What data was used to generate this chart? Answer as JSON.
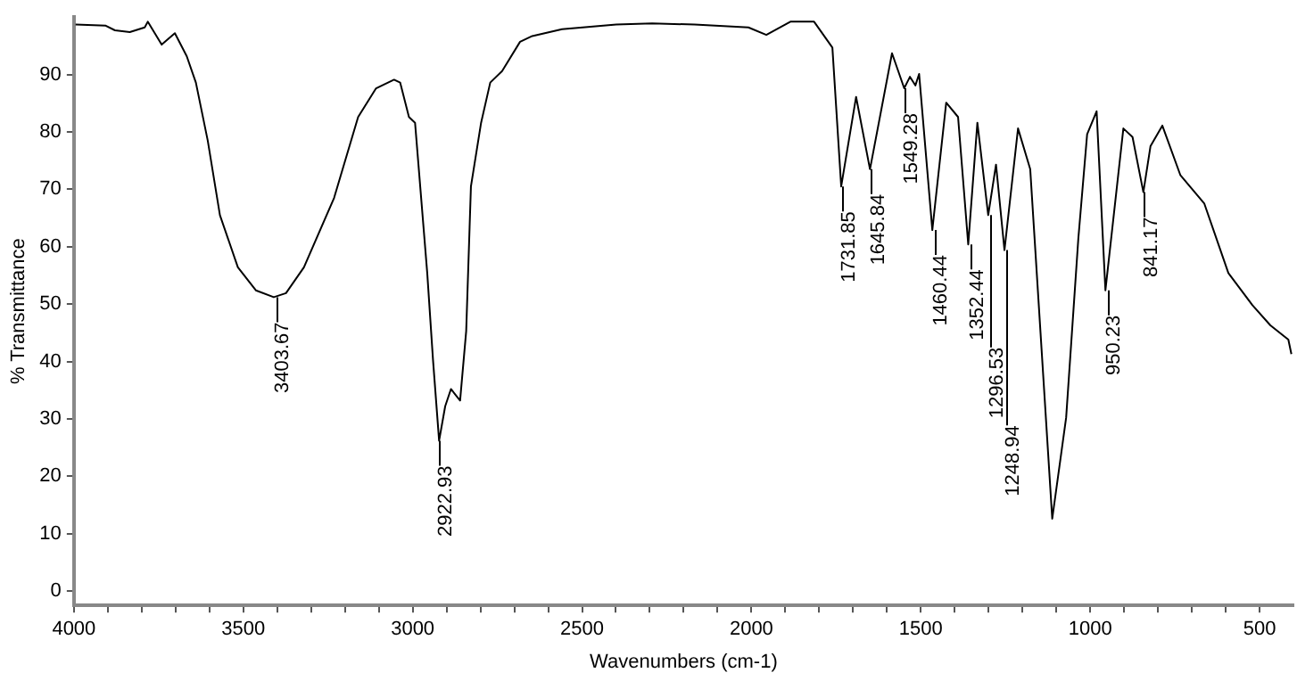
{
  "chart_data": {
    "type": "line",
    "xlabel": "Wavenumbers (cm-1)",
    "ylabel": "% Transmittance",
    "xlim": [
      4000,
      400
    ],
    "ylim": [
      -2.5,
      100
    ],
    "xticks": [
      4000,
      {
        "value": 3900,
        "label": null
      },
      {
        "value": 3800,
        "label": null
      },
      {
        "value": 3700,
        "label": null
      },
      {
        "value": 3600,
        "label": null
      },
      3500,
      {
        "value": 3400,
        "label": null
      },
      {
        "value": 3300,
        "label": null
      },
      {
        "value": 3200,
        "label": null
      },
      {
        "value": 3100,
        "label": null
      },
      3000,
      {
        "value": 2900,
        "label": null
      },
      {
        "value": 2800,
        "label": null
      },
      {
        "value": 2700,
        "label": null
      },
      {
        "value": 2600,
        "label": null
      },
      2500,
      {
        "value": 2400,
        "label": null
      },
      {
        "value": 2300,
        "label": null
      },
      {
        "value": 2200,
        "label": null
      },
      {
        "value": 2100,
        "label": null
      },
      2000,
      {
        "value": 1900,
        "label": null
      },
      {
        "value": 1800,
        "label": null
      },
      {
        "value": 1700,
        "label": null
      },
      {
        "value": 1600,
        "label": null
      },
      1500,
      {
        "value": 1400,
        "label": null
      },
      {
        "value": 1300,
        "label": null
      },
      {
        "value": 1200,
        "label": null
      },
      {
        "value": 1100,
        "label": null
      },
      1000,
      {
        "value": 900,
        "label": null
      },
      {
        "value": 800,
        "label": null
      },
      {
        "value": 700,
        "label": null
      },
      {
        "value": 600,
        "label": null
      },
      500
    ],
    "yticks": [
      0,
      10,
      20,
      30,
      40,
      50,
      60,
      70,
      80,
      90
    ],
    "grid": false,
    "series": [
      {
        "color": "#000000",
        "x": [
          3995,
          3906,
          3879,
          3835,
          3791,
          3782,
          3741,
          3702,
          3667,
          3640,
          3605,
          3569,
          3516,
          3463,
          3410,
          3374,
          3321,
          3232,
          3161,
          3108,
          3055,
          3037,
          3011,
          2993,
          2957,
          2940,
          2922,
          2904,
          2887,
          2860,
          2842,
          2828,
          2798,
          2771,
          2736,
          2683,
          2647,
          2559,
          2399,
          2293,
          2168,
          2009,
          1956,
          1885,
          1815,
          1761,
          1735,
          1691,
          1650,
          1585,
          1549,
          1532,
          1516,
          1505,
          1466,
          1425,
          1390,
          1360,
          1333,
          1301,
          1278,
          1253,
          1213,
          1177,
          1112,
          1071,
          1035,
          1009,
          981,
          955,
          902,
          875,
          843,
          822,
          787,
          734,
          663,
          592,
          521,
          468,
          415,
          406
        ],
        "values": [
          98.7,
          98.5,
          97.7,
          97.4,
          98.2,
          99.2,
          95.2,
          97.2,
          93.2,
          88.6,
          78.5,
          65.5,
          56.4,
          52.4,
          51.2,
          51.9,
          56.4,
          68.5,
          82.6,
          87.6,
          89.1,
          88.6,
          82.6,
          81.6,
          55.4,
          40.3,
          26.2,
          32.2,
          35.2,
          33.2,
          45.3,
          70.5,
          81.6,
          88.6,
          90.6,
          95.7,
          96.7,
          97.9,
          98.7,
          98.9,
          98.7,
          98.2,
          96.9,
          99.2,
          99.2,
          94.7,
          70.5,
          86.1,
          73.5,
          93.7,
          87.6,
          89.6,
          88.1,
          90.1,
          62.9,
          85.1,
          82.6,
          60.4,
          81.6,
          65.5,
          74.3,
          59.4,
          80.6,
          73.5,
          12.6,
          30.2,
          61.4,
          79.6,
          83.6,
          52.4,
          80.6,
          79.1,
          69.5,
          77.5,
          81.1,
          72.5,
          67.5,
          55.4,
          49.8,
          46.3,
          43.8,
          41.3
        ]
      }
    ],
    "annotations": [
      {
        "text": "3403.67",
        "x": 3403.67,
        "y": 51.2
      },
      {
        "text": "2922.93",
        "x": 2922.93,
        "y": 26.2
      },
      {
        "text": "1731.85",
        "x": 1731.85,
        "y": 70.5
      },
      {
        "text": "1645.84",
        "x": 1645.84,
        "y": 73.5
      },
      {
        "text": "1549.28",
        "x": 1549.28,
        "y": 87.6
      },
      {
        "text": "1460.44",
        "x": 1460.44,
        "y": 62.9
      },
      {
        "text": "1352.44",
        "x": 1352.44,
        "y": 60.4
      },
      {
        "text": "1296.53",
        "x": 1296.53,
        "y": 65.5
      },
      {
        "text": "1248.94",
        "x": 1248.94,
        "y": 59.4
      },
      {
        "text": "950.23",
        "x": 950.23,
        "y": 52.4
      },
      {
        "text": "841.17",
        "x": 841.17,
        "y": 69.5
      }
    ]
  }
}
